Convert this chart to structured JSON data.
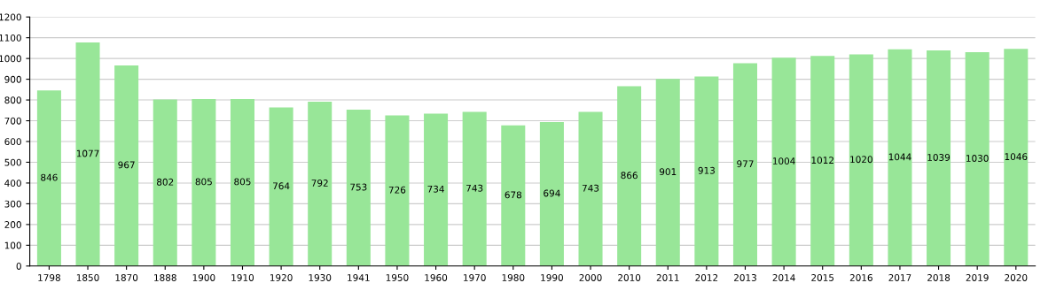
{
  "chart_data": {
    "type": "bar",
    "categories": [
      "1798",
      "1850",
      "1870",
      "1888",
      "1900",
      "1910",
      "1920",
      "1930",
      "1941",
      "1950",
      "1960",
      "1970",
      "1980",
      "1990",
      "2000",
      "2010",
      "2011",
      "2012",
      "2013",
      "2014",
      "2015",
      "2016",
      "2017",
      "2018",
      "2019",
      "2020"
    ],
    "values": [
      846,
      1077,
      967,
      802,
      805,
      805,
      764,
      792,
      753,
      726,
      734,
      743,
      678,
      694,
      743,
      866,
      901,
      913,
      977,
      1004,
      1012,
      1020,
      1044,
      1039,
      1030,
      1046
    ],
    "color": "#98e698",
    "ylim": [
      0,
      1200
    ],
    "yticks": [
      0,
      100,
      200,
      300,
      400,
      500,
      600,
      700,
      800,
      900,
      1000,
      1100,
      1200
    ],
    "grid": "y",
    "data_labels": true
  }
}
